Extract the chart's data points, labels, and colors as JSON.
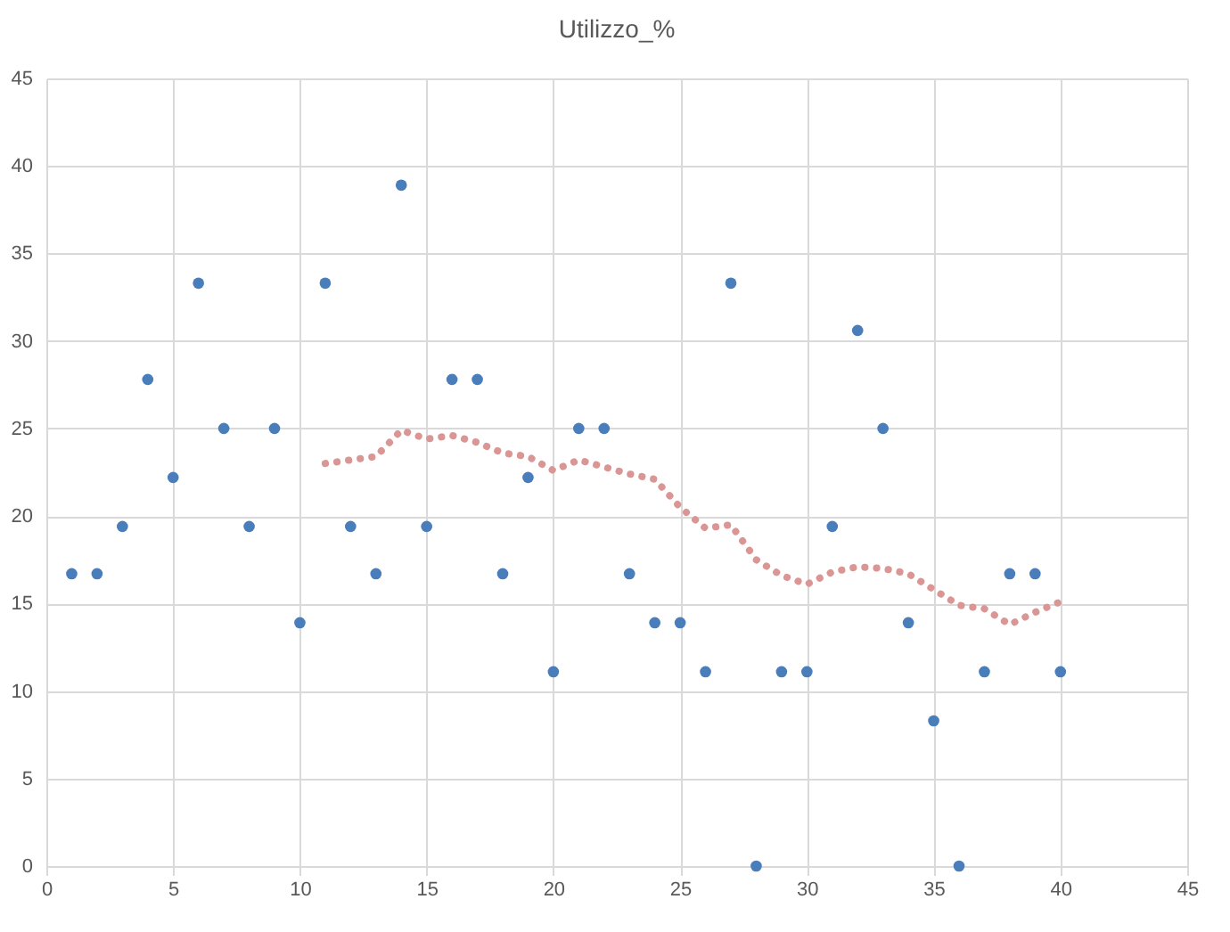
{
  "chart_data": {
    "type": "scatter",
    "title": "Utilizzo_%",
    "xlim": [
      0,
      45
    ],
    "xticks": [
      0,
      5,
      10,
      15,
      20,
      25,
      30,
      35,
      40,
      45
    ],
    "ylim": [
      0,
      45
    ],
    "yticks": [
      0,
      5,
      10,
      15,
      20,
      25,
      30,
      35,
      40,
      45
    ],
    "grid": true,
    "marker": "circle",
    "series": [
      {
        "color": "#4a7ebb",
        "x": [
          1,
          2,
          3,
          4,
          5,
          6,
          7,
          8,
          9,
          10,
          11,
          12,
          13,
          14,
          15,
          16,
          17,
          18,
          19,
          20,
          21,
          22,
          23,
          24,
          25,
          26,
          27,
          28,
          29,
          30,
          31,
          32,
          33,
          34,
          35,
          36,
          37,
          38,
          39,
          40
        ],
        "values": [
          16.7,
          16.7,
          19.4,
          27.8,
          22.2,
          33.3,
          25,
          19.4,
          25,
          13.9,
          33.3,
          19.4,
          16.7,
          38.9,
          19.4,
          27.8,
          27.8,
          16.7,
          22.2,
          11.1,
          25,
          25,
          16.7,
          13.9,
          13.9,
          11.1,
          33.3,
          0,
          11.1,
          11.1,
          19.4,
          30.6,
          25,
          13.9,
          8.3,
          0,
          11.1,
          16.7,
          16.7,
          11.1
        ]
      },
      {
        "type": "line",
        "color": "#d99694",
        "line_style": "dotted",
        "marker": "none",
        "x": [
          11,
          12,
          13,
          14,
          15,
          16,
          17,
          18,
          19,
          20,
          21,
          22,
          23,
          24,
          25,
          26,
          27,
          28,
          29,
          30,
          31,
          32,
          33,
          34,
          35,
          36,
          37,
          38,
          39,
          40
        ],
        "values": [
          23.0,
          23.2,
          23.4,
          24.9,
          24.4,
          24.6,
          24.2,
          23.6,
          23.4,
          22.6,
          23.2,
          22.8,
          22.4,
          22.1,
          20.5,
          19.3,
          19.5,
          17.5,
          16.6,
          16.1,
          16.8,
          17.1,
          17.0,
          16.7,
          15.8,
          14.9,
          14.7,
          13.8,
          14.5,
          15.1
        ]
      }
    ]
  }
}
